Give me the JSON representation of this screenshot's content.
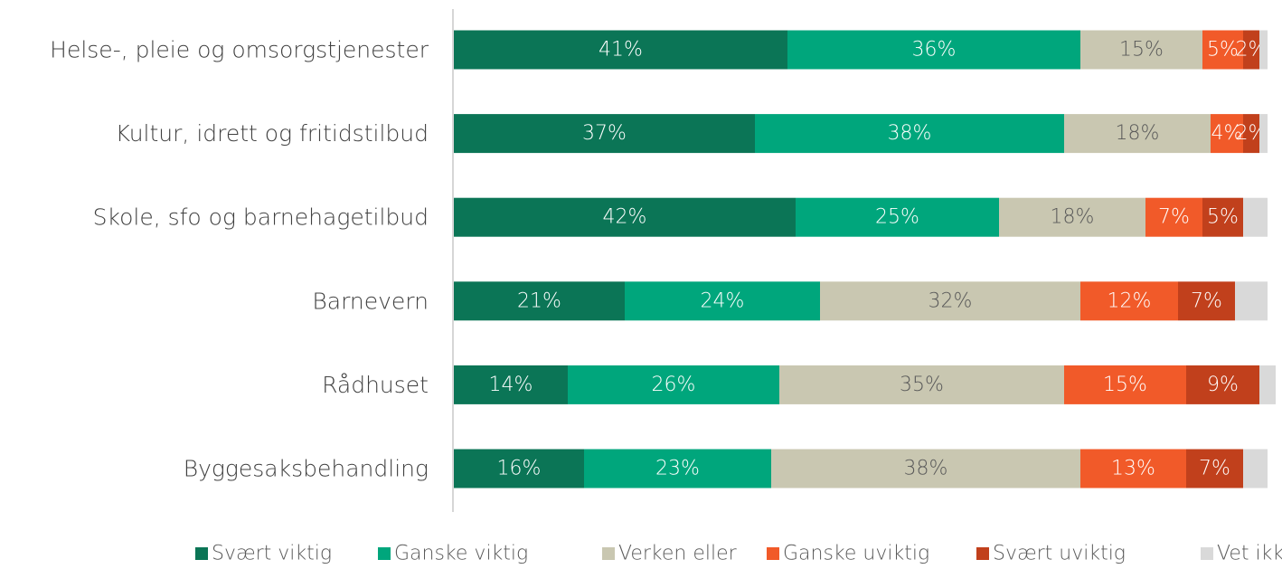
{
  "chart_data": {
    "type": "stacked-barh",
    "categories": [
      "Helse-, pleie og omsorgstjenester",
      "Kultur, idrett og fritidstilbud",
      "Skole, sfo og barnehagetilbud",
      "Barnevern",
      "Rådhuset",
      "Byggesaksbehandling"
    ],
    "xlim": [
      0,
      100
    ],
    "legend": "bottom",
    "series": [
      {
        "name": "Svært viktig",
        "color": "#0b7556",
        "values": [
          41,
          37,
          42,
          21,
          14,
          16
        ],
        "value_labels": [
          "41%",
          "37%",
          "42%",
          "21%",
          "14%",
          "16%"
        ]
      },
      {
        "name": "Ganske viktig",
        "color": "#00a67c",
        "values": [
          36,
          38,
          25,
          24,
          26,
          23
        ],
        "value_labels": [
          "36%",
          "38%",
          "25%",
          "24%",
          "26%",
          "23%"
        ]
      },
      {
        "name": "Verken eller",
        "color": "#c9c7b1",
        "values": [
          15,
          18,
          18,
          32,
          35,
          38
        ],
        "value_labels": [
          "15%",
          "18%",
          "18%",
          "32%",
          "35%",
          "38%"
        ]
      },
      {
        "name": "Ganske uviktig",
        "color": "#f15a29",
        "values": [
          5,
          4,
          7,
          12,
          15,
          13
        ],
        "value_labels": [
          "5%",
          "4%",
          "7%",
          "12%",
          "15%",
          "13%"
        ]
      },
      {
        "name": "Svært uviktig",
        "color": "#c1401c",
        "values": [
          2,
          2,
          5,
          7,
          9,
          7
        ],
        "value_labels": [
          "2%",
          "2%",
          "5%",
          "7%",
          "9%",
          "7%"
        ]
      },
      {
        "name": "Vet ikke",
        "color": "#d9d9d9",
        "values": [
          1,
          1,
          3,
          4,
          2,
          3
        ],
        "value_labels": [
          null,
          null,
          null,
          null,
          null,
          null
        ]
      }
    ]
  }
}
